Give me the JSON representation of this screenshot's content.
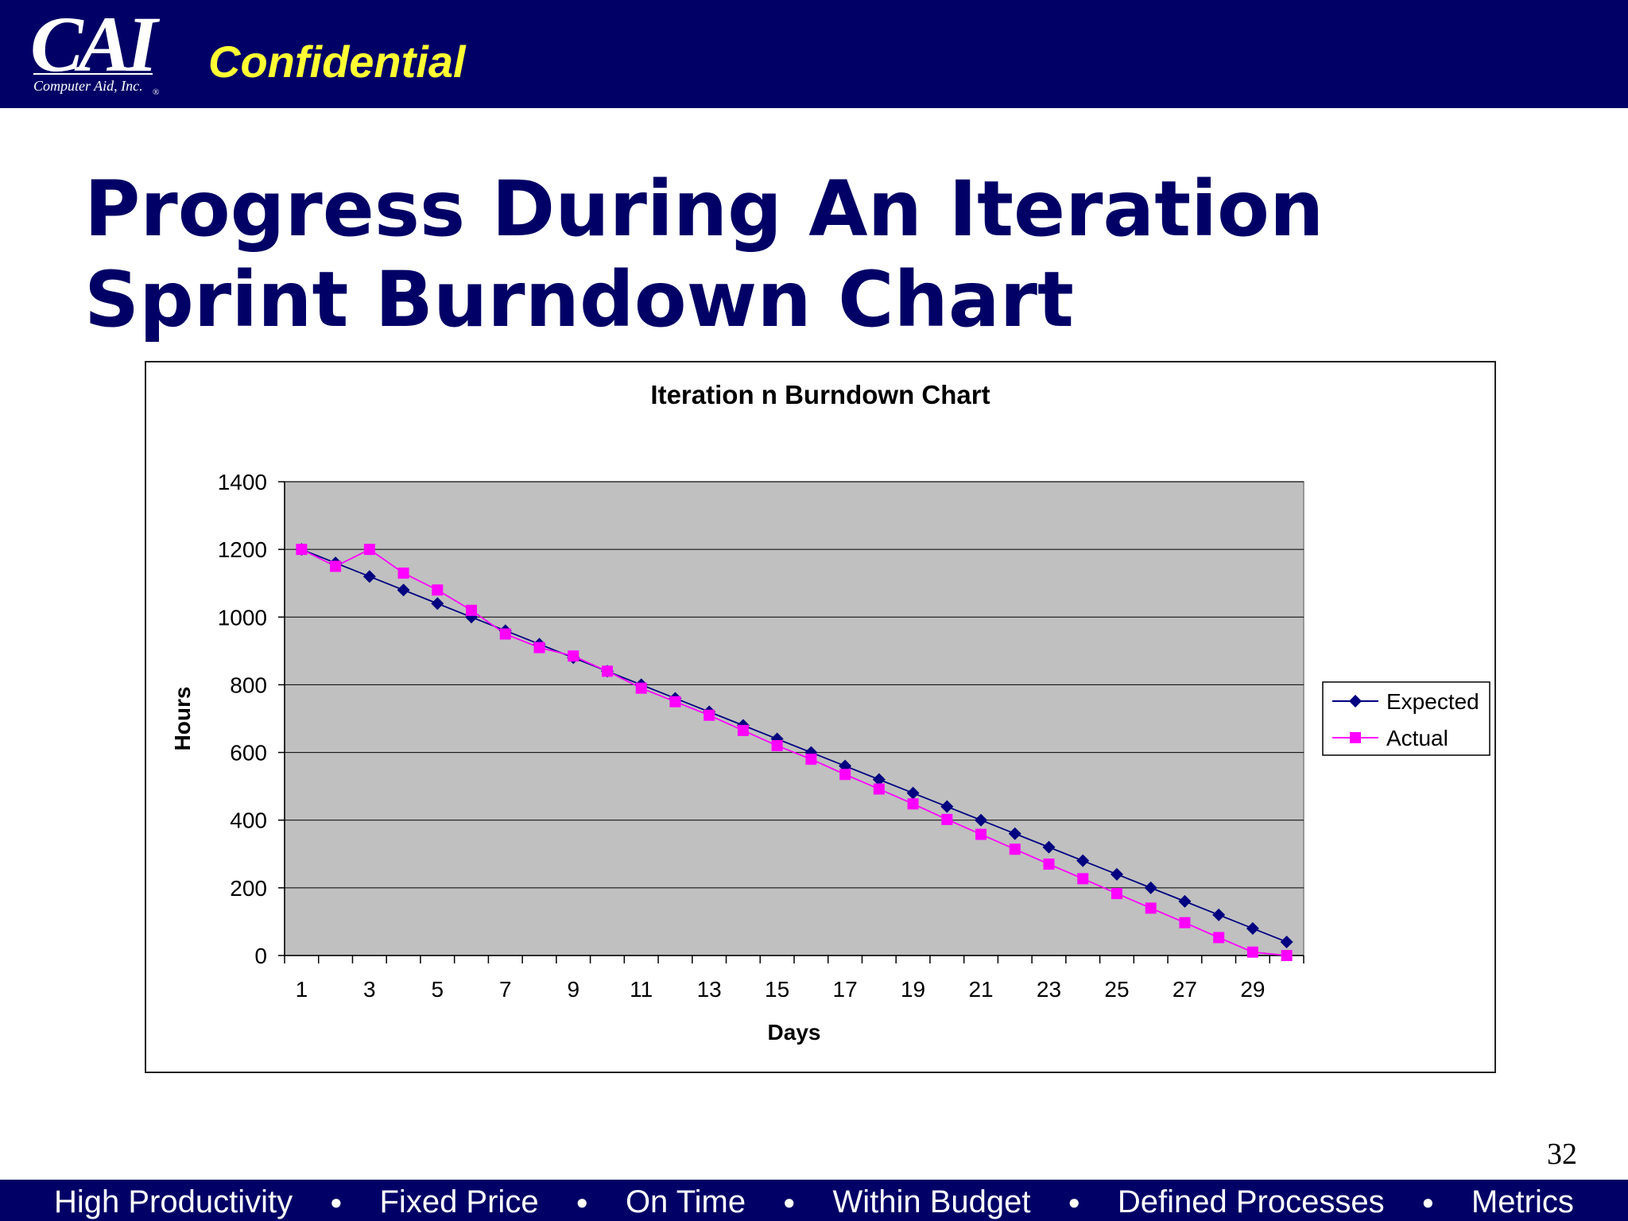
{
  "header": {
    "logo_text": "CAI",
    "logo_subtext": "Computer Aid, Inc.",
    "logo_registered": "®",
    "confidential": "Confidential",
    "background_color": "#000066",
    "confidential_color": "#ffff33"
  },
  "title": {
    "line1": "Progress During An Iteration",
    "line2": "Sprint Burndown Chart"
  },
  "chart_data": {
    "type": "line",
    "title": "Iteration n Burndown Chart",
    "xlabel": "Days",
    "ylabel": "Hours",
    "x": [
      1,
      2,
      3,
      4,
      5,
      6,
      7,
      8,
      9,
      10,
      11,
      12,
      13,
      14,
      15,
      16,
      17,
      18,
      19,
      20,
      21,
      22,
      23,
      24,
      25,
      26,
      27,
      28,
      29,
      30
    ],
    "x_tick_labels": [
      "1",
      "3",
      "5",
      "7",
      "9",
      "11",
      "13",
      "15",
      "17",
      "19",
      "21",
      "23",
      "25",
      "27",
      "29"
    ],
    "ylim": [
      0,
      1400
    ],
    "y_ticks": [
      0,
      200,
      400,
      600,
      800,
      1000,
      1200,
      1400
    ],
    "grid": true,
    "plot_background": "#c0c0c0",
    "legend_position": "right",
    "series": [
      {
        "name": "Expected",
        "color": "#000080",
        "marker": "diamond",
        "values": [
          1200,
          1160,
          1120,
          1080,
          1040,
          1000,
          960,
          920,
          880,
          840,
          800,
          760,
          720,
          680,
          640,
          600,
          560,
          520,
          480,
          440,
          400,
          360,
          320,
          280,
          240,
          200,
          160,
          120,
          80,
          40
        ]
      },
      {
        "name": "Actual",
        "color": "#ff00ff",
        "marker": "square",
        "values": [
          1200,
          1150,
          1200,
          1130,
          1080,
          1020,
          950,
          910,
          885,
          840,
          790,
          750,
          710,
          665,
          620,
          580,
          535,
          492,
          448,
          402,
          358,
          314,
          270,
          227,
          183,
          140,
          97,
          53,
          10,
          0
        ]
      }
    ]
  },
  "page_number": "32",
  "footer": {
    "items": [
      "High Productivity",
      "Fixed Price",
      "On Time",
      "Within Budget",
      "Defined Processes",
      "Metrics"
    ],
    "separator": "●"
  }
}
